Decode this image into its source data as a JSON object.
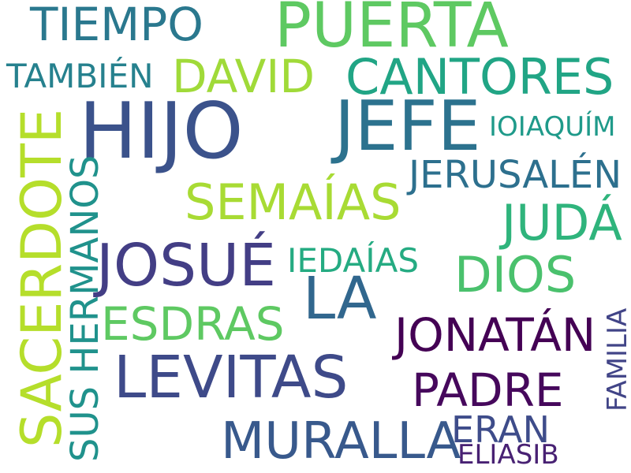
{
  "background": "#ffffff",
  "words": [
    {
      "id": "puerta",
      "text": "PUERTA",
      "color": "#5ec962"
    },
    {
      "id": "tiempo",
      "text": "TIEMPO",
      "color": "#2a788e"
    },
    {
      "id": "hijo",
      "text": "HIJO",
      "color": "#3b528b"
    },
    {
      "id": "jefe",
      "text": "JEFE",
      "color": "#2c728e"
    },
    {
      "id": "david",
      "text": "DAVID",
      "color": "#a0da39"
    },
    {
      "id": "cantores",
      "text": "CANTORES",
      "color": "#21a585"
    },
    {
      "id": "tambien",
      "text": "TAMBIÉN",
      "color": "#26818e"
    },
    {
      "id": "ioiaquim",
      "text": "IOIAQUÍM",
      "color": "#1f9a8a"
    },
    {
      "id": "sacerdote",
      "text": "SACERDOTE",
      "color": "#b5de2b"
    },
    {
      "id": "sus-hermanos",
      "text": "SUS HERMANOS",
      "color": "#20928c"
    },
    {
      "id": "jerusalen",
      "text": "JERUSALÉN",
      "color": "#2d708e"
    },
    {
      "id": "semaias",
      "text": "SEMAÍAS",
      "color": "#a8db34"
    },
    {
      "id": "juda",
      "text": "JUDÁ",
      "color": "#2fb47c"
    },
    {
      "id": "josue",
      "text": "JOSUÉ",
      "color": "#433e85"
    },
    {
      "id": "iedaias",
      "text": "IEDAÍAS",
      "color": "#25ab82"
    },
    {
      "id": "la",
      "text": "LA",
      "color": "#31678e"
    },
    {
      "id": "dios",
      "text": "DIOS",
      "color": "#4ac16d"
    },
    {
      "id": "esdras",
      "text": "ESDRAS",
      "color": "#5ec962"
    },
    {
      "id": "jonatan",
      "text": "JONATÁN",
      "color": "#440154"
    },
    {
      "id": "familia",
      "text": "FAMILIA",
      "color": "#414487"
    },
    {
      "id": "levitas",
      "text": "LEVITAS",
      "color": "#3e4a89"
    },
    {
      "id": "padre",
      "text": "PADRE",
      "color": "#46085c"
    },
    {
      "id": "muralla",
      "text": "MURALLA",
      "color": "#38598c"
    },
    {
      "id": "eran",
      "text": "ERAN",
      "color": "#3e4c8a"
    },
    {
      "id": "eliasib",
      "text": "ELIASIB",
      "color": "#482173"
    }
  ]
}
